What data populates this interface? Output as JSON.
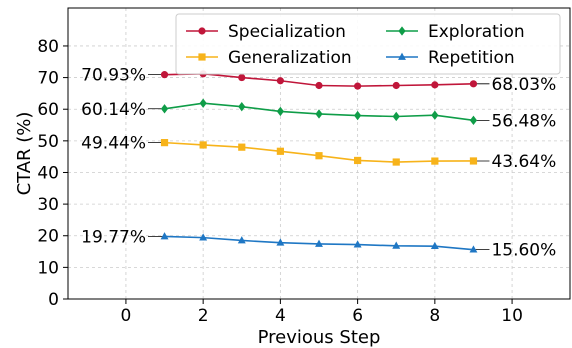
{
  "chart_data": {
    "type": "line",
    "title": "",
    "xlabel": "Previous Step",
    "ylabel": "CTAR (%)",
    "xlim": [
      -1.5,
      11.5
    ],
    "ylim": [
      0,
      92
    ],
    "xticks": [
      0,
      2,
      4,
      6,
      8,
      10
    ],
    "yticks": [
      0,
      10,
      20,
      30,
      40,
      50,
      60,
      70,
      80
    ],
    "grid": true,
    "legend_position": "top-right",
    "legend_columns": 2,
    "x": [
      1,
      2,
      3,
      4,
      5,
      6,
      7,
      8,
      9
    ],
    "series": [
      {
        "name": "Specialization",
        "color": "#c0163a",
        "marker": "circle",
        "values": [
          70.93,
          71.2,
          70.0,
          69.0,
          67.5,
          67.3,
          67.5,
          67.7,
          68.03
        ],
        "start_label": "70.93%",
        "end_label": "68.03%"
      },
      {
        "name": "Exploration",
        "color": "#0f9d48",
        "marker": "diamond",
        "values": [
          60.14,
          61.9,
          60.8,
          59.3,
          58.5,
          58.0,
          57.7,
          58.1,
          56.48
        ],
        "start_label": "60.14%",
        "end_label": "56.48%"
      },
      {
        "name": "Generalization",
        "color": "#f7b31a",
        "marker": "square",
        "values": [
          49.44,
          48.7,
          48.0,
          46.7,
          45.3,
          43.8,
          43.3,
          43.6,
          43.64
        ],
        "start_label": "49.44%",
        "end_label": "43.64%"
      },
      {
        "name": "Repetition",
        "color": "#1f77c4",
        "marker": "triangle",
        "values": [
          19.77,
          19.4,
          18.5,
          17.8,
          17.4,
          17.2,
          16.8,
          16.7,
          15.6
        ],
        "start_label": "19.77%",
        "end_label": "15.60%"
      }
    ],
    "legend_order": [
      "Specialization",
      "Exploration",
      "Generalization",
      "Repetition"
    ]
  }
}
